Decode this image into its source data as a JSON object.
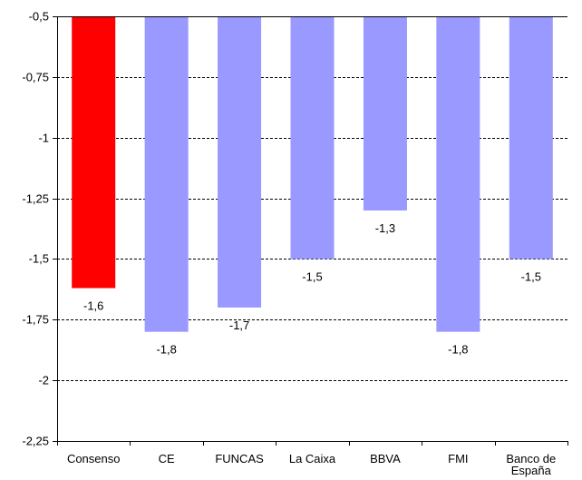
{
  "chart_data": {
    "type": "bar",
    "title": "",
    "xlabel": "",
    "ylabel": "",
    "categories": [
      "Consenso",
      "CE",
      "FUNCAS",
      "La Caixa",
      "BBVA",
      "FMI",
      "Banco de España"
    ],
    "category_lines": [
      [
        "Consenso"
      ],
      [
        "CE"
      ],
      [
        "FUNCAS"
      ],
      [
        "La Caixa"
      ],
      [
        "BBVA"
      ],
      [
        "FMI"
      ],
      [
        "Banco de",
        "España"
      ]
    ],
    "values": [
      -1.62,
      -1.8,
      -1.7,
      -1.5,
      -1.3,
      -1.8,
      -1.5
    ],
    "data_labels": [
      "-1,6",
      "-1,8",
      "-1,7",
      "-1,5",
      "-1,3",
      "-1,8",
      "-1,5"
    ],
    "ylim": [
      -2.25,
      -0.5
    ],
    "yticks": [
      -0.5,
      -0.75,
      -1,
      -1.25,
      -1.5,
      -1.75,
      -2,
      -2.25
    ],
    "ytick_labels": [
      "-0,5",
      "-0,75",
      "-1",
      "-1,25",
      "-1,5",
      "-1,75",
      "-2",
      "-2,25"
    ],
    "grid": true,
    "legend": "none",
    "colors": {
      "highlight": "#ff0000",
      "bar": "#9999ff",
      "grid": "#000000",
      "axis": "#000000"
    },
    "highlight_index": 0
  }
}
